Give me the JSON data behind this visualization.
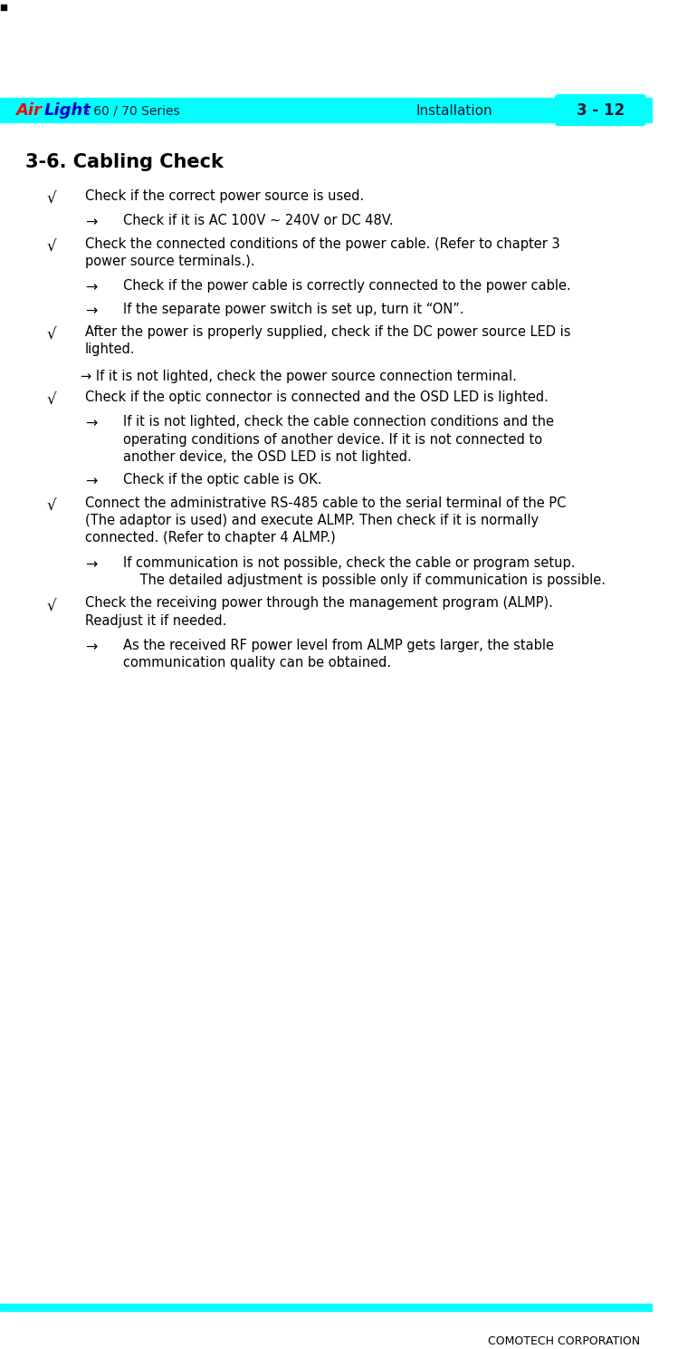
{
  "title": "3-6. Cabling Check",
  "header_series": "- 60 / 70 Series",
  "header_section": "Installation",
  "header_page": "3 - 12",
  "footer_company": "COMOTECH CORPORATION",
  "cyan_color": "#00FFFF",
  "red_color": "#FF0000",
  "blue_color": "#0000CC",
  "dark_color": "#1a1a2e",
  "black": "#000000",
  "bg_color": "#FFFFFF",
  "content": [
    {
      "type": "check",
      "text": "Check if the correct power source is used."
    },
    {
      "type": "arrow",
      "text": "Check if it is AC 100V ∼ 240V or DC 48V."
    },
    {
      "type": "check",
      "text": "Check the connected conditions of the power cable. (Refer to chapter 3\npower source terminals.)."
    },
    {
      "type": "arrow",
      "text": "Check if the power cable is correctly connected to the power cable."
    },
    {
      "type": "arrow",
      "text": "If the separate power switch is set up, turn it “ON”."
    },
    {
      "type": "check",
      "text": "After the power is properly supplied, check if the DC power source LED is\nlighted."
    },
    {
      "type": "arrow_inline",
      "text": "→ If it is not lighted, check the power source connection terminal."
    },
    {
      "type": "check",
      "text": "Check if the optic connector is connected and the OSD LED is lighted."
    },
    {
      "type": "arrow",
      "text": "If it is not lighted, check the cable connection conditions and the\noperating conditions of another device. If it is not connected to\nanother device, the OSD LED is not lighted."
    },
    {
      "type": "arrow",
      "text": "Check if the optic cable is OK."
    },
    {
      "type": "check",
      "text": "Connect the administrative RS-485 cable to the serial terminal of the PC\n(The adaptor is used) and execute ALMP. Then check if it is normally\nconnected. (Refer to chapter 4 ALMP.)"
    },
    {
      "type": "arrow",
      "text": "If communication is not possible, check the cable or program setup.\n    The detailed adjustment is possible only if communication is possible."
    },
    {
      "type": "check",
      "text": "Check the receiving power through the management program (ALMP).\nReadjust it if needed."
    },
    {
      "type": "arrow",
      "text": "As the received RF power level from ALMP gets larger, the stable\ncommunication quality can be obtained."
    }
  ]
}
